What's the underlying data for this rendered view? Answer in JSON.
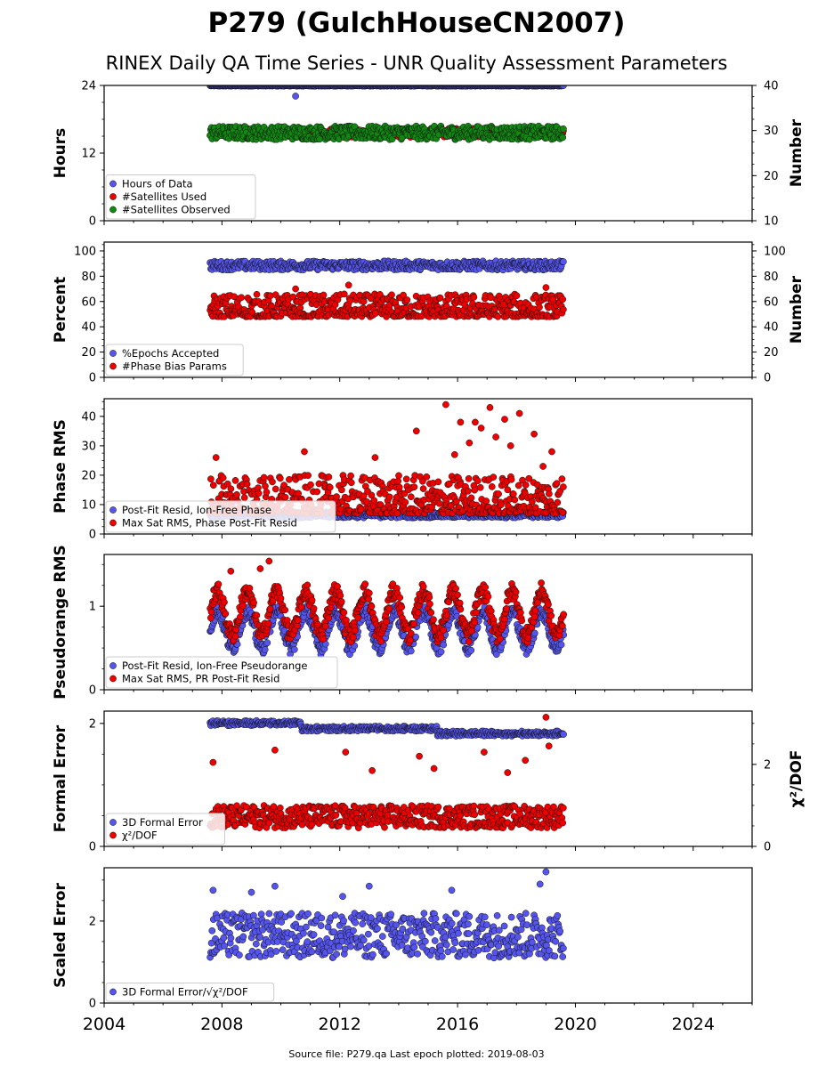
{
  "title": "P279 (GulchHouseCN2007)",
  "subtitle": "RINEX Daily QA Time Series - UNR Quality Assessment Parameters",
  "footer": "Source file: P279.qa Last epoch plotted: 2019-08-03",
  "colors": {
    "blue": "#5555ee",
    "red": "#ee0000",
    "green": "#118811",
    "edge": "#111111"
  },
  "chart_data": [
    {
      "type": "scatter",
      "xlim": [
        2004,
        2026
      ],
      "xticks": [
        2004,
        2008,
        2012,
        2016,
        2020,
        2024
      ],
      "ylabel": "Hours",
      "ylim": [
        0,
        24
      ],
      "yticks": [
        0,
        12,
        24
      ],
      "y2label": "Number",
      "y2lim": [
        10,
        40
      ],
      "y2ticks": [
        10,
        20,
        30,
        40
      ],
      "series": [
        {
          "name": "Hours of Data",
          "color": "blue",
          "axis": "left",
          "x_range": [
            2007.6,
            2019.6
          ],
          "typical": [
            23.9,
            24.0
          ],
          "outliers": [
            [
              2010.5,
              22.1
            ]
          ]
        },
        {
          "name": "#Satellites Used",
          "color": "red",
          "axis": "right",
          "x_range": [
            2007.6,
            2019.6
          ],
          "typical": [
            28.5,
            30.5
          ],
          "outliers": [
            [
              2008.9,
              30.0
            ]
          ]
        },
        {
          "name": "#Satellites Observed",
          "color": "green",
          "axis": "right",
          "x_range": [
            2007.6,
            2019.6
          ],
          "typical": [
            28.0,
            31.0
          ],
          "outliers": []
        }
      ],
      "legend": "lower-left"
    },
    {
      "type": "scatter",
      "xlim": [
        2004,
        2026
      ],
      "ylabel": "Percent",
      "ylim": [
        0,
        107
      ],
      "yticks": [
        0,
        20,
        40,
        60,
        80,
        100
      ],
      "y2label": "Number",
      "y2lim": [
        0,
        107
      ],
      "y2ticks": [
        0,
        20,
        40,
        60,
        80,
        100
      ],
      "series": [
        {
          "name": "%Epochs Accepted",
          "color": "blue",
          "axis": "left",
          "x_range": [
            2007.6,
            2019.6
          ],
          "typical": [
            85,
            92
          ],
          "outliers": []
        },
        {
          "name": "#Phase Bias Params",
          "color": "red",
          "axis": "right",
          "x_range": [
            2007.6,
            2019.6
          ],
          "typical": [
            48,
            66
          ],
          "outliers": [
            [
              2012.3,
              73
            ],
            [
              2019.0,
              71
            ],
            [
              2010.5,
              70
            ]
          ]
        }
      ],
      "legend": "lower-left"
    },
    {
      "type": "scatter",
      "xlim": [
        2004,
        2026
      ],
      "ylabel": "Phase RMS",
      "ylim": [
        0,
        46
      ],
      "yticks": [
        0,
        10,
        20,
        30,
        40
      ],
      "series": [
        {
          "name": "Post-Fit Resid, Ion-Free Phase",
          "color": "blue",
          "axis": "left",
          "x_range": [
            2007.6,
            2019.6
          ],
          "typical": [
            5.5,
            7.5
          ],
          "outliers": []
        },
        {
          "name": "Max Sat RMS, Phase Post-Fit Resid",
          "color": "red",
          "axis": "left",
          "x_range": [
            2007.6,
            2019.6
          ],
          "typical": [
            7,
            20
          ],
          "outliers": [
            [
              2007.8,
              26
            ],
            [
              2010.8,
              28
            ],
            [
              2014.6,
              35
            ],
            [
              2015.6,
              44
            ],
            [
              2016.1,
              38
            ],
            [
              2016.6,
              38
            ],
            [
              2017.1,
              43
            ],
            [
              2017.6,
              39
            ],
            [
              2018.1,
              41
            ],
            [
              2018.6,
              34
            ],
            [
              2016.4,
              31
            ],
            [
              2017.3,
              33
            ],
            [
              2016.8,
              36
            ],
            [
              2017.8,
              30
            ],
            [
              2019.2,
              28
            ],
            [
              2015.9,
              27
            ],
            [
              2018.9,
              23
            ],
            [
              2013.2,
              26
            ]
          ]
        }
      ],
      "legend": "lower-left"
    },
    {
      "type": "scatter",
      "xlim": [
        2004,
        2026
      ],
      "ylabel": "Pseudorange RMS",
      "ylim": [
        0,
        1.62
      ],
      "yticks": [
        0,
        1
      ],
      "series": [
        {
          "name": "Post-Fit Resid, Ion-Free Pseudorange",
          "color": "blue",
          "axis": "left",
          "x_range": [
            2007.6,
            2019.6
          ],
          "seasonal": {
            "mid": 0.72,
            "amp": 0.22,
            "noise": 0.08
          }
        },
        {
          "name": "Max Sat RMS, PR Post-Fit Resid",
          "color": "red",
          "axis": "left",
          "x_range": [
            2007.6,
            2019.6
          ],
          "seasonal": {
            "mid": 0.92,
            "amp": 0.26,
            "noise": 0.1
          },
          "outliers": [
            [
              2009.6,
              1.54
            ],
            [
              2009.3,
              1.45
            ],
            [
              2008.3,
              1.42
            ]
          ]
        }
      ],
      "legend": "lower-left"
    },
    {
      "type": "scatter",
      "xlim": [
        2004,
        2026
      ],
      "ylabel": "Formal Error",
      "ylim": [
        0,
        2.2
      ],
      "yticks": [
        0,
        2
      ],
      "y2label": "χ²/DOF",
      "y2lim": [
        0,
        3.3
      ],
      "y2ticks": [
        0,
        2
      ],
      "series": [
        {
          "name": "3D Formal Error",
          "color": "blue",
          "axis": "left",
          "steps": [
            [
              2007.6,
              2010.7,
              2.02
            ],
            [
              2010.7,
              2015.3,
              1.93
            ],
            [
              2015.3,
              2019.6,
              1.85
            ]
          ]
        },
        {
          "name": "χ²/DOF",
          "color": "red",
          "axis": "right",
          "x_range": [
            2007.6,
            2019.6
          ],
          "typical": [
            0.45,
            1.0
          ],
          "outliers": [
            [
              2019.0,
              3.15
            ],
            [
              2019.1,
              2.45
            ],
            [
              2009.8,
              2.35
            ],
            [
              2012.2,
              2.3
            ],
            [
              2016.9,
              2.3
            ],
            [
              2014.7,
              2.2
            ],
            [
              2018.3,
              2.1
            ],
            [
              2007.7,
              2.05
            ],
            [
              2013.1,
              1.85
            ],
            [
              2017.7,
              1.8
            ],
            [
              2015.2,
              1.9
            ]
          ]
        }
      ],
      "legend": "lower-left"
    },
    {
      "type": "scatter",
      "xlim": [
        2004,
        2026
      ],
      "ylabel": "Scaled Error",
      "ylim": [
        0,
        3.3
      ],
      "yticks": [
        0,
        2
      ],
      "series": [
        {
          "name": "3D Formal Error/√χ²/DOF",
          "color": "blue",
          "axis": "left",
          "x_range": [
            2007.6,
            2019.6
          ],
          "typical": [
            1.1,
            2.2
          ],
          "outliers": [
            [
              2019.0,
              3.2
            ],
            [
              2018.8,
              2.9
            ],
            [
              2009.8,
              2.85
            ],
            [
              2013.0,
              2.85
            ],
            [
              2007.7,
              2.75
            ],
            [
              2009.0,
              2.7
            ],
            [
              2015.8,
              2.75
            ],
            [
              2012.1,
              2.6
            ]
          ]
        }
      ],
      "legend": "lower-left"
    }
  ]
}
